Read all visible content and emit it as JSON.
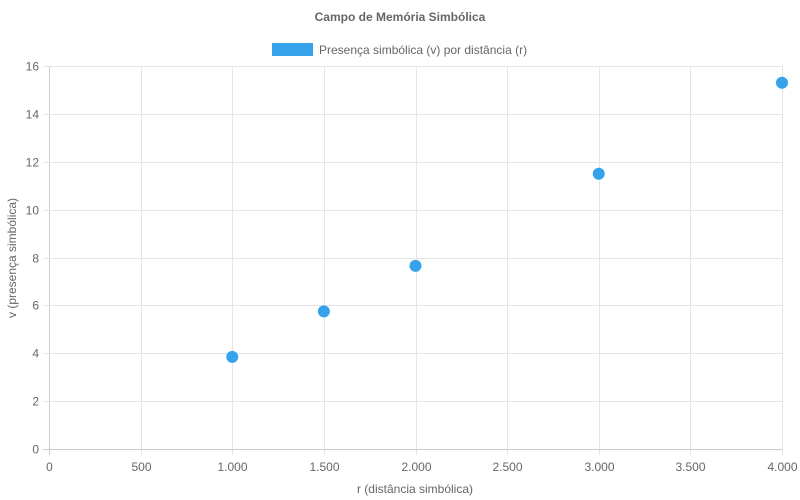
{
  "chart_data": {
    "type": "scatter",
    "title": "Campo de Memória Simbólica",
    "xlabel": "r (distância simbólica)",
    "ylabel": "v (presença simbólica)",
    "xlim": [
      0,
      4000
    ],
    "ylim": [
      0,
      16
    ],
    "x_ticks": [
      0,
      500,
      1000,
      1500,
      2000,
      2500,
      3000,
      3500,
      4000
    ],
    "x_tick_labels": [
      "0",
      "500",
      "1.000",
      "1.500",
      "2.000",
      "2.500",
      "3.000",
      "3.500",
      "4.000"
    ],
    "y_ticks": [
      0,
      2,
      4,
      6,
      8,
      10,
      12,
      14,
      16
    ],
    "y_tick_labels": [
      "0",
      "2",
      "4",
      "6",
      "8",
      "10",
      "12",
      "14",
      "16"
    ],
    "grid": true,
    "legend_position": "top-center",
    "series": [
      {
        "name": "Presença simbólica (v) por distância (r)",
        "color": "#36a2eb",
        "points": [
          {
            "x": 1000,
            "y": 3.85
          },
          {
            "x": 1500,
            "y": 5.75
          },
          {
            "x": 2000,
            "y": 7.65
          },
          {
            "x": 3000,
            "y": 11.5
          },
          {
            "x": 4000,
            "y": 15.3
          }
        ]
      }
    ]
  }
}
